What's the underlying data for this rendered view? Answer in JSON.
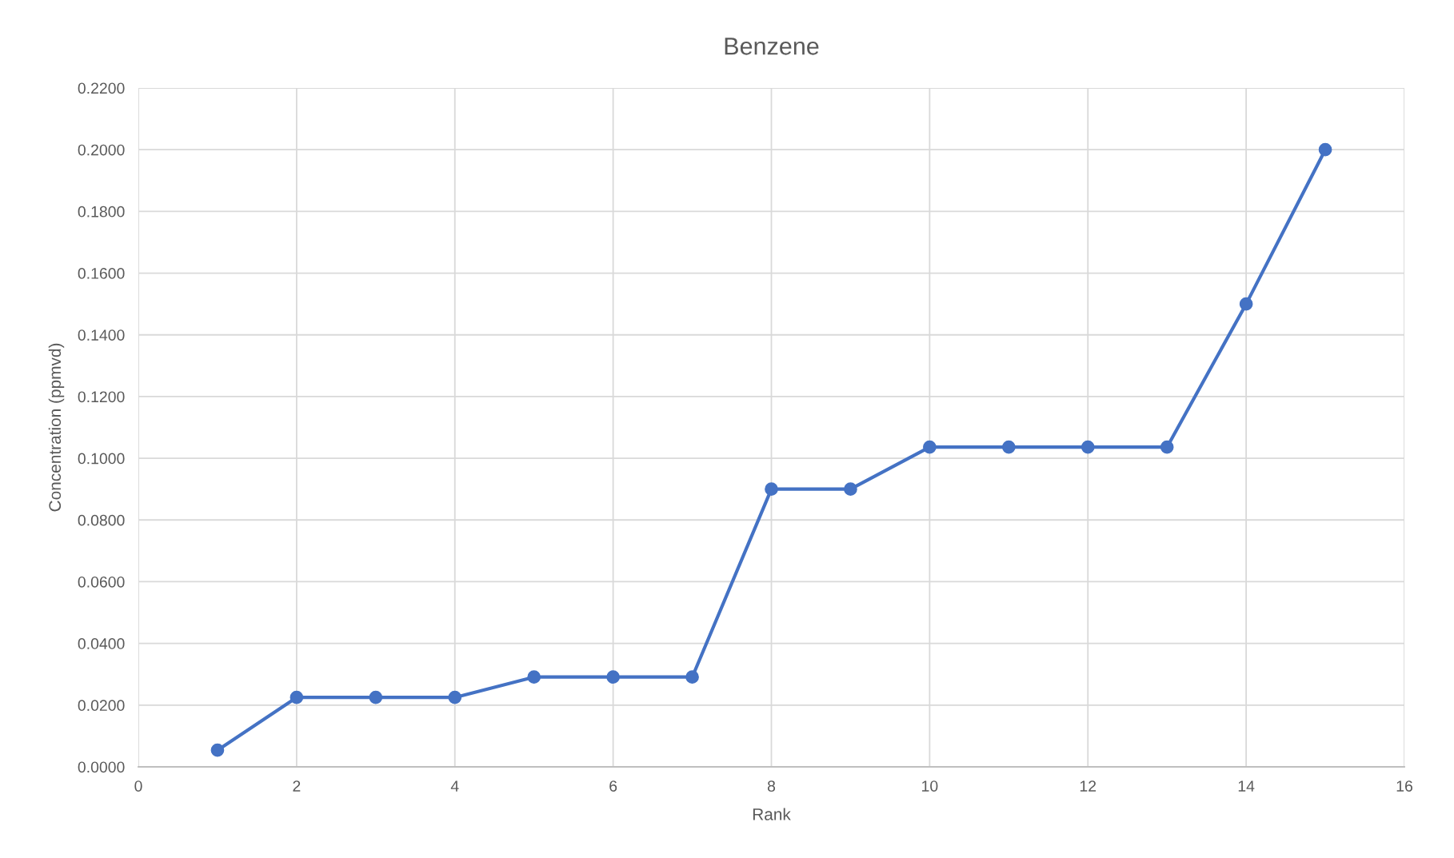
{
  "chart_data": {
    "type": "line",
    "title": "Benzene",
    "xlabel": "Rank",
    "ylabel": "Concentration (ppmvd)",
    "x": [
      1,
      2,
      3,
      4,
      5,
      6,
      7,
      8,
      9,
      10,
      11,
      12,
      13,
      14,
      15
    ],
    "series": [
      {
        "color": "#4472c4",
        "values": [
          0.0054,
          0.0225,
          0.0225,
          0.0225,
          0.0291,
          0.0291,
          0.0291,
          0.09,
          0.09,
          0.1036,
          0.1036,
          0.1036,
          0.1036,
          0.15,
          0.2
        ]
      }
    ],
    "xlim": [
      0,
      16
    ],
    "xticks": [
      0,
      2,
      4,
      6,
      8,
      10,
      12,
      14,
      16
    ],
    "ylim": [
      0,
      0.22
    ],
    "yticks": [
      {
        "value": 0,
        "label": "0.0000"
      },
      {
        "value": 0.02,
        "label": "0.0200"
      },
      {
        "value": 0.04,
        "label": "0.0400"
      },
      {
        "value": 0.06,
        "label": "0.0600"
      },
      {
        "value": 0.08,
        "label": "0.0800"
      },
      {
        "value": 0.1,
        "label": "0.1000"
      },
      {
        "value": 0.12,
        "label": "0.1200"
      },
      {
        "value": 0.14,
        "label": "0.1400"
      },
      {
        "value": 0.16,
        "label": "0.1600"
      },
      {
        "value": 0.18,
        "label": "0.1800"
      },
      {
        "value": 0.2,
        "label": "0.2000"
      },
      {
        "value": 0.22,
        "label": "0.2200"
      }
    ],
    "grid": true,
    "marker": "circle",
    "line_style": "solid",
    "legend": false
  }
}
